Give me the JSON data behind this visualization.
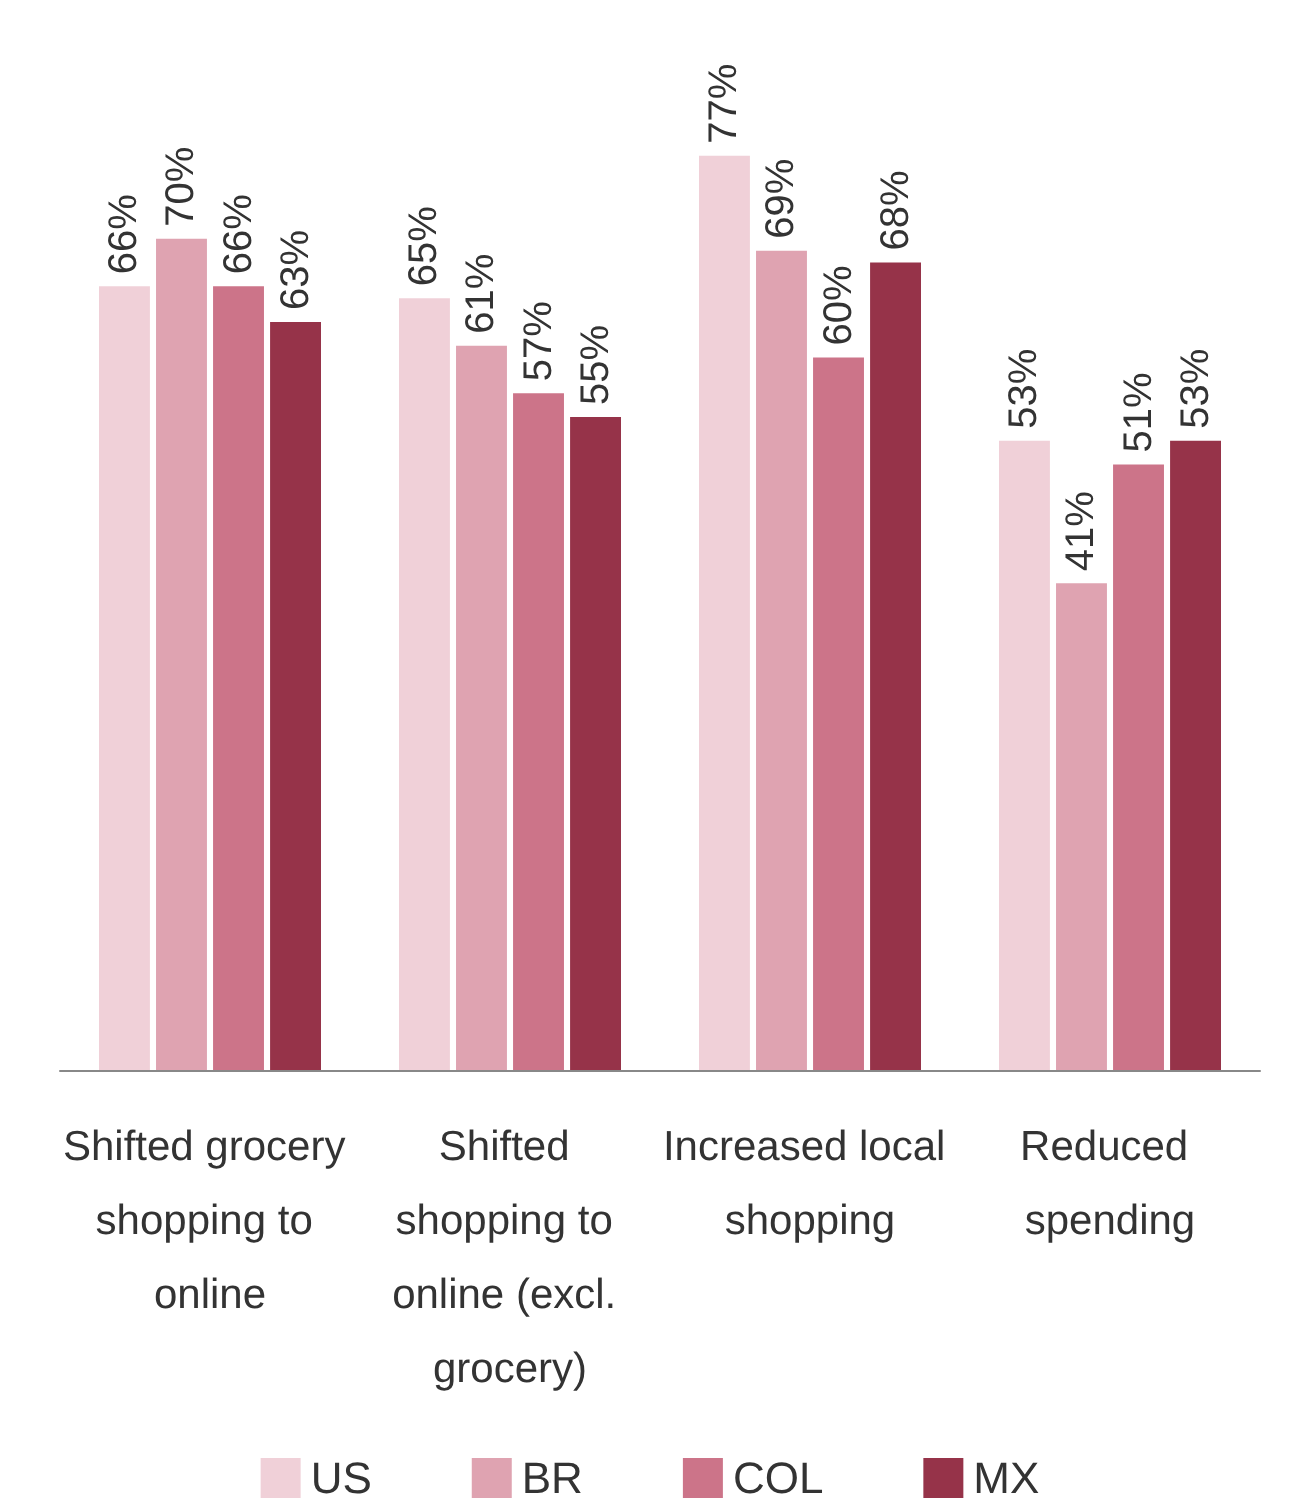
{
  "chart_data": {
    "type": "bar",
    "categories": [
      "Shifted grocery shopping to online",
      "Shifted shopping to online (excl. grocery)",
      "Increased local shopping",
      "Reduced spending"
    ],
    "series": [
      {
        "name": "US",
        "color": "#f0d0d8",
        "values": [
          66,
          65,
          77,
          53
        ],
        "value_labels": [
          "66%",
          "65%",
          "77%",
          "53%"
        ]
      },
      {
        "name": "BR",
        "color": "#dfa3b1",
        "values": [
          70,
          61,
          69,
          41
        ],
        "value_labels": [
          "70%",
          "61%",
          "69%",
          "41%"
        ]
      },
      {
        "name": "COL",
        "color": "#cc7489",
        "values": [
          66,
          57,
          60,
          51
        ],
        "value_labels": [
          "66%",
          "57%",
          "60%",
          "51%"
        ]
      },
      {
        "name": "MX",
        "color": "#963349",
        "values": [
          63,
          55,
          68,
          53
        ],
        "value_labels": [
          "63%",
          "55%",
          "68%",
          "53%"
        ]
      }
    ],
    "legend": "bottom"
  }
}
